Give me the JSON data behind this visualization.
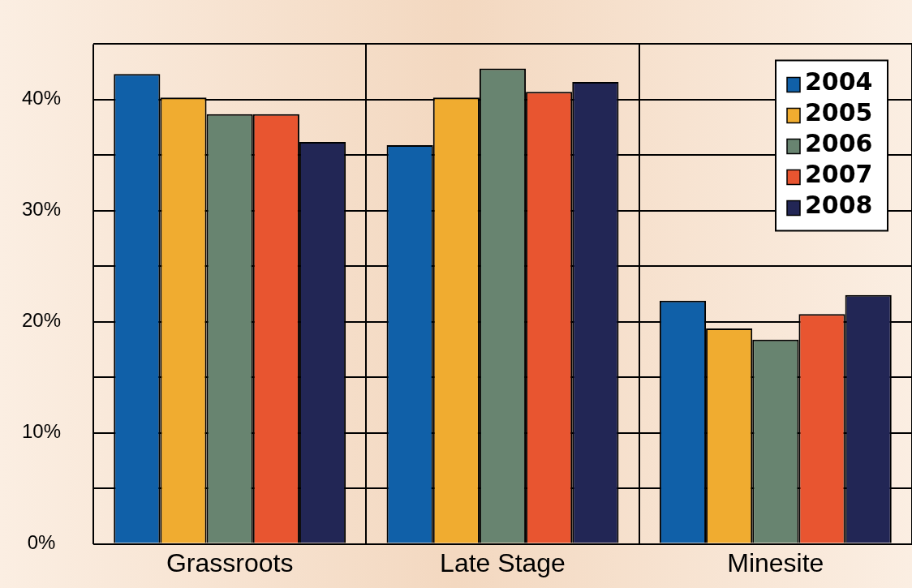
{
  "chart_data": {
    "type": "bar",
    "categories": [
      "Grassroots",
      "Late Stage",
      "Minesite"
    ],
    "series": [
      {
        "name": "2004",
        "color": "#1060a8",
        "values": [
          42.3,
          35.9,
          21.9
        ]
      },
      {
        "name": "2005",
        "color": "#f0ac30",
        "values": [
          40.2,
          40.2,
          19.4
        ]
      },
      {
        "name": "2006",
        "color": "#688470",
        "values": [
          38.7,
          42.8,
          18.4
        ]
      },
      {
        "name": "2007",
        "color": "#e85530",
        "values": [
          38.7,
          40.7,
          20.7
        ]
      },
      {
        "name": "2008",
        "color": "#222655",
        "values": [
          36.2,
          41.6,
          22.4
        ]
      }
    ],
    "ylim": [
      0,
      45
    ],
    "yticks": [
      {
        "value": 0,
        "label": "0%"
      },
      {
        "value": 5,
        "label": null
      },
      {
        "value": 10,
        "label": "10%"
      },
      {
        "value": 15,
        "label": null
      },
      {
        "value": 20,
        "label": "20%"
      },
      {
        "value": 25,
        "label": null
      },
      {
        "value": 30,
        "label": "30%"
      },
      {
        "value": 35,
        "label": null
      },
      {
        "value": 40,
        "label": "40%"
      },
      {
        "value": 45,
        "label": null
      }
    ],
    "grid": true,
    "legend": "top right"
  }
}
